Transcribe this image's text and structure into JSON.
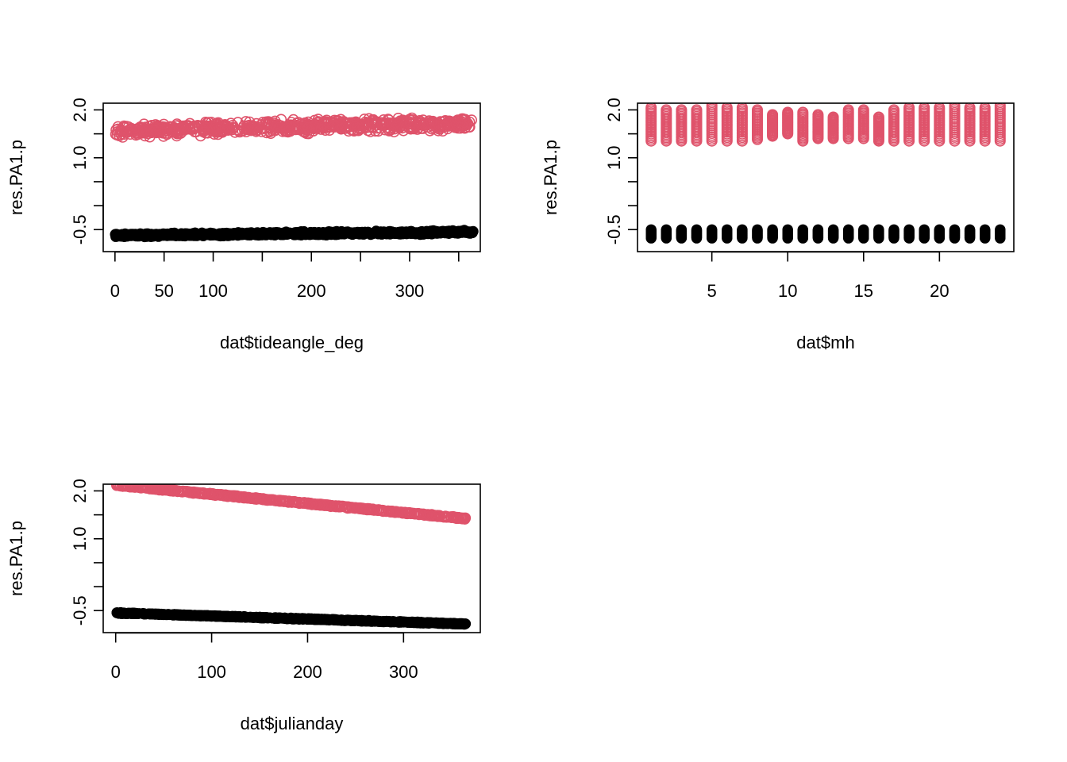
{
  "chart_data": [
    {
      "type": "scatter",
      "title": "",
      "xlabel": "dat$tideangle_deg",
      "ylabel": "res.PA1.p",
      "xlim": [
        -12,
        372
      ],
      "ylim": [
        -0.96,
        2.14
      ],
      "x_ticks": [
        0,
        50,
        100,
        150,
        200,
        250,
        300,
        350
      ],
      "x_tick_labels": [
        "0",
        "50",
        "100",
        "",
        "200",
        "",
        "300",
        ""
      ],
      "y_ticks": [
        -1.0,
        -0.5,
        0.0,
        0.5,
        1.0,
        1.5,
        2.0
      ],
      "y_tick_labels": [
        "-0.5",
        "",
        "",
        "1.0",
        "",
        "2.0"
      ],
      "grid": false,
      "series": [
        {
          "color": "#DF536B",
          "marker": "open-circle",
          "x_range": [
            0,
            365
          ],
          "trend": [
            [
              0,
              1.55
            ],
            [
              120,
              1.62
            ],
            [
              240,
              1.68
            ],
            [
              365,
              1.7
            ]
          ],
          "spread": 0.18
        },
        {
          "color": "#000000",
          "marker": "filled-circle",
          "x_range": [
            0,
            365
          ],
          "trend": [
            [
              0,
              -0.62
            ],
            [
              365,
              -0.55
            ]
          ],
          "spread": 0.05
        }
      ]
    },
    {
      "type": "scatter",
      "title": "",
      "xlabel": "dat$mh",
      "ylabel": "res.PA1.p",
      "xlim": [
        0.1,
        24.9
      ],
      "ylim": [
        -0.96,
        2.14
      ],
      "x_ticks": [
        5,
        10,
        15,
        20
      ],
      "x_tick_labels": [
        "5",
        "10",
        "15",
        "20"
      ],
      "y_ticks": [
        -1.0,
        -0.5,
        0.0,
        0.5,
        1.0,
        1.5,
        2.0
      ],
      "y_tick_labels": [
        "-0.5",
        "",
        "",
        "1.0",
        "",
        "2.0"
      ],
      "grid": false,
      "series": [
        {
          "color": "#DF536B",
          "marker": "open-circle",
          "x_values": [
            1,
            2,
            3,
            4,
            5,
            6,
            7,
            8,
            9,
            10,
            11,
            12,
            13,
            14,
            15,
            16,
            17,
            18,
            19,
            20,
            21,
            22,
            23,
            24
          ],
          "y_min": [
            1.35,
            1.35,
            1.35,
            1.35,
            1.35,
            1.35,
            1.35,
            1.38,
            1.45,
            1.5,
            1.35,
            1.4,
            1.4,
            1.4,
            1.4,
            1.35,
            1.35,
            1.35,
            1.35,
            1.35,
            1.35,
            1.35,
            1.35,
            1.35
          ],
          "y_max": [
            2.05,
            2.0,
            2.0,
            2.0,
            2.1,
            2.05,
            2.05,
            2.0,
            1.9,
            1.95,
            1.95,
            1.9,
            1.85,
            2.0,
            2.0,
            1.85,
            2.0,
            2.05,
            2.05,
            2.05,
            2.1,
            2.05,
            2.05,
            2.1
          ]
        },
        {
          "color": "#000000",
          "marker": "filled-circle",
          "x_values": [
            1,
            2,
            3,
            4,
            5,
            6,
            7,
            8,
            9,
            10,
            11,
            12,
            13,
            14,
            15,
            16,
            17,
            18,
            19,
            20,
            21,
            22,
            23,
            24
          ],
          "y_min": [
            -0.68,
            -0.68,
            -0.68,
            -0.68,
            -0.68,
            -0.68,
            -0.68,
            -0.68,
            -0.68,
            -0.68,
            -0.68,
            -0.68,
            -0.68,
            -0.68,
            -0.68,
            -0.68,
            -0.68,
            -0.68,
            -0.68,
            -0.68,
            -0.68,
            -0.68,
            -0.68,
            -0.68
          ],
          "y_max": [
            -0.5,
            -0.5,
            -0.5,
            -0.5,
            -0.5,
            -0.5,
            -0.5,
            -0.5,
            -0.5,
            -0.5,
            -0.5,
            -0.5,
            -0.5,
            -0.5,
            -0.5,
            -0.5,
            -0.5,
            -0.5,
            -0.5,
            -0.5,
            -0.5,
            -0.5,
            -0.5,
            -0.5
          ]
        }
      ]
    },
    {
      "type": "scatter",
      "title": "",
      "xlabel": "dat$julianday",
      "ylabel": "res.PA1.p",
      "xlim": [
        -13,
        380
      ],
      "ylim": [
        -0.96,
        2.14
      ],
      "x_ticks": [
        0,
        100,
        200,
        300
      ],
      "x_tick_labels": [
        "0",
        "100",
        "200",
        "300"
      ],
      "y_ticks": [
        -1.0,
        -0.5,
        0.0,
        0.5,
        1.0,
        1.5,
        2.0
      ],
      "y_tick_labels": [
        "-0.5",
        "",
        "",
        "1.0",
        "",
        "2.0"
      ],
      "grid": false,
      "series": [
        {
          "color": "#DF536B",
          "marker": "open-circle",
          "x_range": [
            1,
            365
          ],
          "trend": [
            [
              1,
              2.12
            ],
            [
              365,
              1.42
            ]
          ],
          "spread": 0.02
        },
        {
          "color": "#000000",
          "marker": "filled-circle",
          "x_range": [
            1,
            365
          ],
          "trend": [
            [
              1,
              -0.55
            ],
            [
              365,
              -0.78
            ]
          ],
          "spread": 0.015
        }
      ]
    }
  ]
}
